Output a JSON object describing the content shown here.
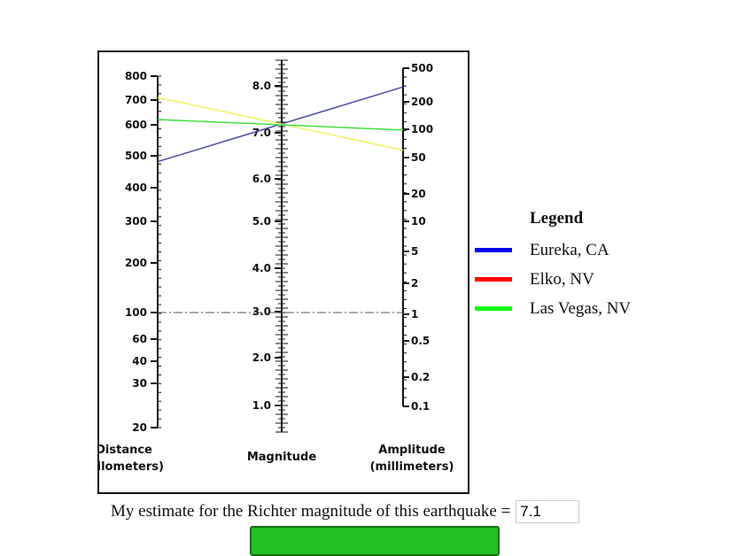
{
  "chart_data": {
    "type": "nomogram",
    "axes": [
      {
        "name": "distance",
        "label": [
          "Distance",
          "(kilometers)"
        ],
        "ticks": [
          "800",
          "700",
          "600",
          "500",
          "400",
          "300",
          "200",
          "100",
          "60",
          "40",
          "30",
          "20"
        ]
      },
      {
        "name": "magnitude",
        "label": [
          "Magnitude"
        ],
        "ticks": [
          "8.0",
          "7.0",
          "6.0",
          "5.0",
          "4.0",
          "3.0",
          "2.0",
          "1.0"
        ]
      },
      {
        "name": "amplitude",
        "label": [
          "Amplitude",
          "(millimeters)"
        ],
        "ticks": [
          "500",
          "200",
          "100",
          "50",
          "20",
          "10",
          "5",
          "2",
          "1",
          "0.5",
          "0.2",
          "0.1"
        ]
      }
    ],
    "reference_line": {
      "distance": 100,
      "magnitude": 3.0,
      "amplitude": 1
    },
    "lines": [
      {
        "color": "#4848a8",
        "distance": 480,
        "amplitude": 300
      },
      {
        "color": "#f0f060",
        "distance": 710,
        "amplitude": 60
      },
      {
        "color": "#40e040",
        "distance": 620,
        "amplitude": 98
      }
    ]
  },
  "legend": {
    "title": "Legend",
    "items": [
      {
        "label": "Eureka, CA",
        "color": "#0000ff"
      },
      {
        "label": "Elko, NV",
        "color": "#ff0000"
      },
      {
        "label": "Las Vegas, NV",
        "color": "#00ff00"
      }
    ]
  },
  "estimate": {
    "label": "My estimate for the Richter magnitude of this earthquake =",
    "value": "7.1"
  },
  "submit": {
    "color": "#22c022"
  }
}
